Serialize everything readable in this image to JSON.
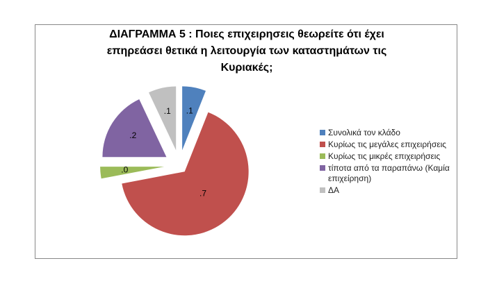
{
  "chart_data": {
    "type": "pie",
    "title": "ΔΙΑΓΡΑΜΜΑ 5 : Ποιες επιχειρησεις θεωρείτε ότι έχει επηρεάσει θετικά η λειτουργία των καταστημάτων τις Κυριακές;",
    "categories": [
      "Συνολικά τον κλάδο",
      "Κυρίως τις μεγάλες επιχειρήσεις",
      "Κυρίως τις μικρές επιχειρήσεις",
      "τίποτα από τα παραπάνω (Καμία επιχείρηση)",
      "ΔΑ"
    ],
    "values": [
      0.06,
      0.66,
      0.03,
      0.18,
      0.07
    ],
    "value_labels": [
      ".1",
      ".7",
      ".0",
      ".2",
      ".1"
    ],
    "colors": [
      "#4f81bd",
      "#c0504d",
      "#9bbb59",
      "#8064a2",
      "#c0c0c0"
    ],
    "legend": "right"
  }
}
